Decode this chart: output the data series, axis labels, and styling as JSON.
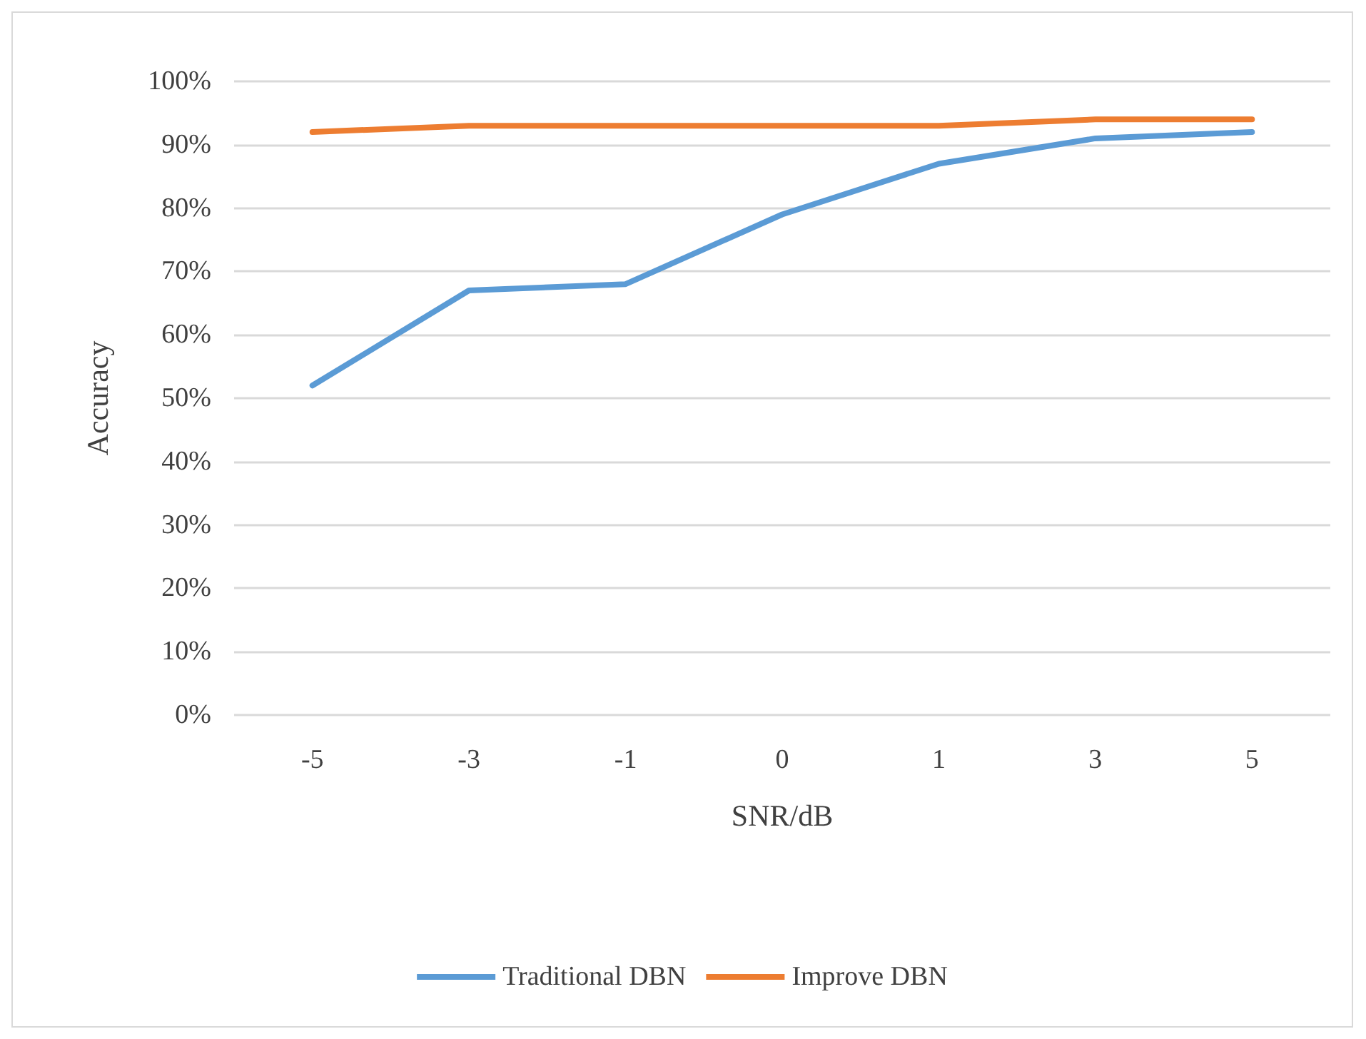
{
  "chart_data": {
    "type": "line",
    "xlabel": "SNR/dB",
    "ylabel": "Accuracy",
    "categories": [
      "-5",
      "-3",
      "-1",
      "0",
      "1",
      "3",
      "5"
    ],
    "series": [
      {
        "name": "Traditional DBN",
        "color": "#5b9bd5",
        "values": [
          52,
          67,
          68,
          79,
          87,
          91,
          92
        ]
      },
      {
        "name": "Improve DBN",
        "color": "#ed7d31",
        "values": [
          92,
          93,
          93,
          93,
          93,
          94,
          94
        ]
      }
    ],
    "ylim": [
      0,
      100
    ],
    "yticks": [
      {
        "value": 0,
        "label": "0%"
      },
      {
        "value": 10,
        "label": "10%"
      },
      {
        "value": 20,
        "label": "20%"
      },
      {
        "value": 30,
        "label": "30%"
      },
      {
        "value": 40,
        "label": "40%"
      },
      {
        "value": 50,
        "label": "50%"
      },
      {
        "value": 60,
        "label": "60%"
      },
      {
        "value": 70,
        "label": "70%"
      },
      {
        "value": 80,
        "label": "80%"
      },
      {
        "value": 90,
        "label": "90%"
      },
      {
        "value": 100,
        "label": "100%"
      }
    ],
    "grid": "y",
    "legend": "bottom",
    "marker": "none",
    "line_style": "solid"
  }
}
